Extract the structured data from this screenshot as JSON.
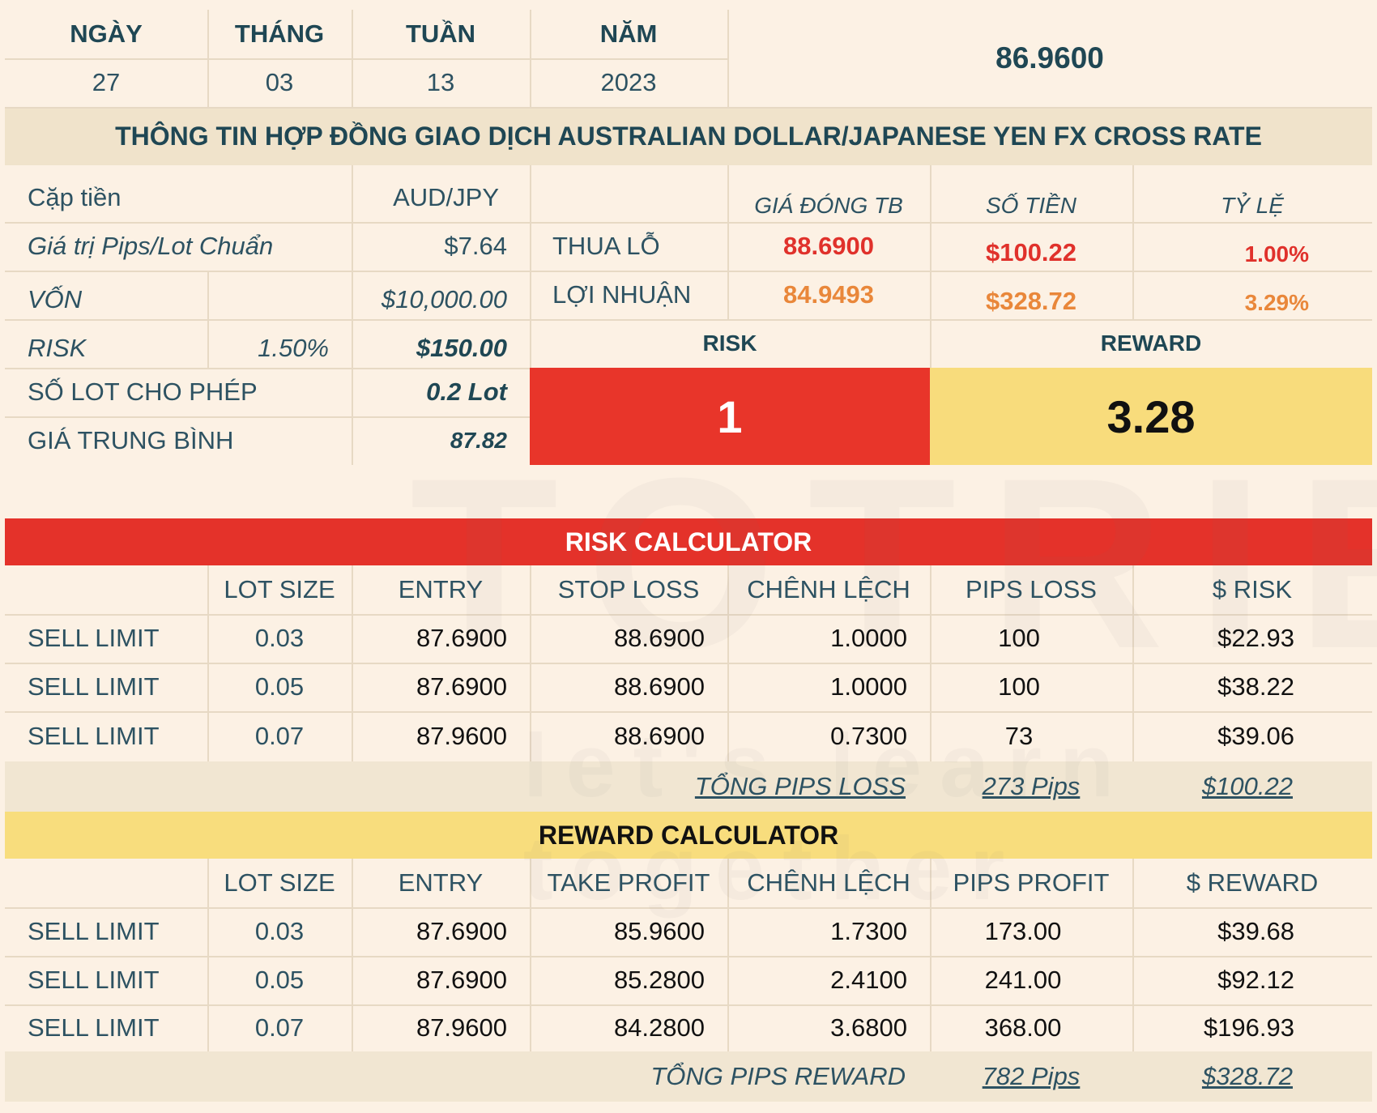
{
  "date_header": {
    "day_label": "NGÀY",
    "month_label": "THÁNG",
    "week_label": "TUẦN",
    "year_label": "NĂM",
    "day": "27",
    "month": "03",
    "week": "13",
    "year": "2023",
    "current_price": "86.9600"
  },
  "title": "THÔNG TIN HỢP ĐỒNG GIAO DỊCH AUSTRALIAN DOLLAR/JAPANESE YEN FX CROSS RATE",
  "contract": {
    "pair_label": "Cặp tiền",
    "pair_value": "AUD/JPY",
    "pair_icon": "bank-icon",
    "pip_value_label": "Giá trị Pips/Lot Chuẩn",
    "pip_value": "$7.64",
    "capital_label": "VỐN",
    "capital_value": "$10,000.00",
    "risk_label": "RISK",
    "risk_percent": "1.50%",
    "risk_amount": "$150.00",
    "lots_label": "SỐ LOT CHO PHÉP",
    "lots_value": "0.2 Lot",
    "avg_price_label": "GIÁ TRUNG BÌNH",
    "avg_price_value": "87.82"
  },
  "summary": {
    "col_avg_close": "GIÁ ĐÓNG TB",
    "col_amount": "SỐ TIỀN",
    "col_ratio": "TỶ LỆ",
    "loss_label": "THUA LỖ",
    "loss_price": "88.6900",
    "loss_amount": "$100.22",
    "loss_ratio": "1.00%",
    "profit_label": "LỢI NHUẬN",
    "profit_price": "84.9493",
    "profit_amount": "$328.72",
    "profit_ratio": "3.29%"
  },
  "rr": {
    "risk_label": "RISK",
    "reward_label": "REWARD",
    "risk_value": "1",
    "reward_value": "3.28",
    "risk_color": "#e8352a",
    "reward_color": "#f8dc7c"
  },
  "risk_calc": {
    "title": "RISK CALCULATOR",
    "headers": [
      "LOT SIZE",
      "ENTRY",
      "STOP LOSS",
      "CHÊNH LỆCH",
      "PIPS LOSS",
      "$ RISK"
    ],
    "rows": [
      [
        "SELL LIMIT",
        "0.03",
        "87.6900",
        "88.6900",
        "1.0000",
        "100",
        "$22.93"
      ],
      [
        "SELL LIMIT",
        "0.05",
        "87.6900",
        "88.6900",
        "1.0000",
        "100",
        "$38.22"
      ],
      [
        "SELL LIMIT",
        "0.07",
        "87.9600",
        "88.6900",
        "0.7300",
        "73",
        "$39.06"
      ]
    ],
    "total_label": "TỔNG PIPS LOSS",
    "total_pips": "273 Pips",
    "total_amount": "$100.22"
  },
  "reward_calc": {
    "title": "REWARD CALCULATOR",
    "headers": [
      "LOT SIZE",
      "ENTRY",
      "TAKE PROFIT",
      "CHÊNH LỆCH",
      "PIPS PROFIT",
      "$ REWARD"
    ],
    "rows": [
      [
        "SELL LIMIT",
        "0.03",
        "87.6900",
        "85.9600",
        "1.7300",
        "173.00",
        "$39.68"
      ],
      [
        "SELL LIMIT",
        "0.05",
        "87.6900",
        "85.2800",
        "2.4100",
        "241.00",
        "$92.12"
      ],
      [
        "SELL LIMIT",
        "0.07",
        "87.9600",
        "84.2800",
        "3.6800",
        "368.00",
        "$196.93"
      ]
    ],
    "total_label": "TỔNG PIPS REWARD",
    "total_pips": "782 Pips",
    "total_amount": "$328.72"
  }
}
